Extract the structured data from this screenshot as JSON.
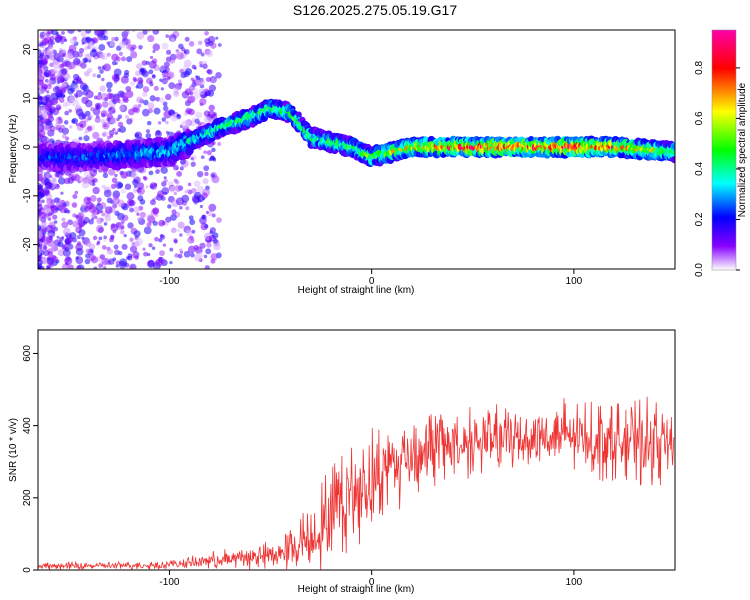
{
  "title": "S126.2025.275.05.19.G17",
  "chart_data": [
    {
      "type": "heatmap",
      "xlabel": "Height of straight line (km)",
      "ylabel": "Frequency (Hz)",
      "xlim": [
        -165,
        150
      ],
      "ylim": [
        -25,
        24
      ],
      "x_ticks": [
        -100,
        0,
        100
      ],
      "x_tick_labels": [
        "-100",
        "0",
        "100"
      ],
      "y_ticks": [
        -20,
        -10,
        0,
        10,
        20
      ],
      "y_tick_labels": [
        "-20",
        "-10",
        "0",
        "10",
        "20"
      ],
      "grid": false,
      "ridge": {
        "x": [
          -165,
          -140,
          -120,
          -100,
          -90,
          -75,
          -60,
          -50,
          -40,
          -30,
          -20,
          -10,
          0,
          20,
          50,
          80,
          100,
          120,
          150
        ],
        "frequency": [
          -2,
          -2,
          -1.5,
          -1,
          1,
          4,
          6,
          8,
          7,
          2,
          1,
          0,
          -2,
          0,
          0,
          0,
          0,
          0,
          -1
        ],
        "amplitude": [
          0.25,
          0.28,
          0.3,
          0.35,
          0.4,
          0.45,
          0.5,
          0.5,
          0.48,
          0.5,
          0.5,
          0.52,
          0.55,
          0.7,
          0.9,
          0.85,
          0.9,
          0.8,
          0.55
        ]
      },
      "colorbar": {
        "label": "Normalized spectral amplitude",
        "range": [
          0,
          0.95
        ],
        "ticks": [
          0.0,
          0.2,
          0.4,
          0.6,
          0.8
        ],
        "tick_labels": [
          "0.0",
          "0.2",
          "0.4",
          "0.6",
          "0.8"
        ],
        "colors": [
          "#ffffff",
          "#8800ff",
          "#0000ff",
          "#00ffff",
          "#00ff00",
          "#ffff00",
          "#ff0000",
          "#ff00aa"
        ]
      }
    },
    {
      "type": "line",
      "xlabel": "Height of straight line (km)",
      "ylabel": "SNR (10 * v/v)",
      "xlim": [
        -165,
        150
      ],
      "ylim": [
        0,
        665
      ],
      "x_ticks": [
        -100,
        0,
        100
      ],
      "x_tick_labels": [
        "-100",
        "0",
        "100"
      ],
      "y_ticks": [
        0,
        200,
        400,
        600
      ],
      "y_tick_labels": [
        "0",
        "200",
        "400",
        "600"
      ],
      "grid": false,
      "series": [
        {
          "color": "#ee3333",
          "x": [
            -165,
            -140,
            -120,
            -100,
            -90,
            -80,
            -70,
            -60,
            -50,
            -45,
            -40,
            -35,
            -30,
            -25,
            -20,
            -15,
            -10,
            -5,
            0,
            10,
            20,
            30,
            40,
            60,
            80,
            100,
            120,
            140,
            150
          ],
          "y": [
            10,
            12,
            12,
            15,
            20,
            25,
            30,
            35,
            40,
            50,
            60,
            80,
            90,
            120,
            160,
            190,
            210,
            230,
            250,
            290,
            320,
            340,
            350,
            360,
            370,
            370,
            360,
            350,
            340
          ],
          "amp": [
            8,
            8,
            8,
            10,
            12,
            18,
            25,
            25,
            30,
            40,
            50,
            60,
            80,
            90,
            110,
            110,
            110,
            110,
            110,
            100,
            90,
            85,
            80,
            70,
            70,
            80,
            85,
            90,
            95
          ]
        }
      ]
    }
  ]
}
